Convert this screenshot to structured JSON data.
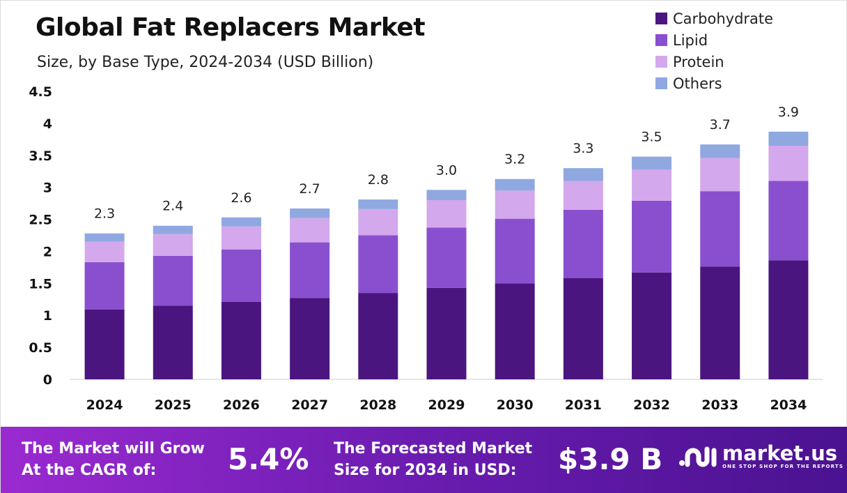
{
  "chart_data": {
    "type": "bar",
    "stacked": true,
    "title": "Global Fat Replacers Market",
    "subtitle": "Size, by Base Type, 2024-2034 (USD Billion)",
    "categories": [
      "2024",
      "2025",
      "2026",
      "2027",
      "2028",
      "2029",
      "2030",
      "2031",
      "2032",
      "2033",
      "2034"
    ],
    "series": [
      {
        "name": "Carbohydrate",
        "color": "#4b1580",
        "values": [
          1.09,
          1.15,
          1.21,
          1.27,
          1.35,
          1.43,
          1.5,
          1.58,
          1.67,
          1.76,
          1.86
        ]
      },
      {
        "name": "Lipid",
        "color": "#8a4fcf",
        "values": [
          0.74,
          0.78,
          0.82,
          0.87,
          0.9,
          0.94,
          1.01,
          1.07,
          1.12,
          1.18,
          1.24
        ]
      },
      {
        "name": "Protein",
        "color": "#d4a8ec",
        "values": [
          0.32,
          0.34,
          0.36,
          0.38,
          0.41,
          0.43,
          0.44,
          0.45,
          0.49,
          0.52,
          0.55
        ]
      },
      {
        "name": "Others",
        "color": "#8fa8e0",
        "values": [
          0.13,
          0.13,
          0.14,
          0.15,
          0.15,
          0.16,
          0.18,
          0.2,
          0.2,
          0.21,
          0.22
        ]
      }
    ],
    "totals_labels": [
      "2.3",
      "2.4",
      "2.6",
      "2.7",
      "2.8",
      "3.0",
      "3.2",
      "3.3",
      "3.5",
      "3.7",
      "3.9"
    ],
    "yticks": [
      "0",
      "0.5",
      "1",
      "1.5",
      "2",
      "2.5",
      "3",
      "3.5",
      "4",
      "4.5"
    ],
    "ylim": [
      0,
      4.5
    ],
    "grid": false,
    "legend_position": "top-right"
  },
  "footer": {
    "cagr_text_1": "The Market will Grow",
    "cagr_text_2": "At the CAGR of:",
    "cagr_value": "5.4%",
    "forecast_text_1": "The Forecasted Market",
    "forecast_text_2": "Size for 2034 in USD:",
    "forecast_value": "$3.9 B",
    "logo_name": "market.us",
    "logo_tagline": "ONE STOP SHOP FOR THE REPORTS"
  }
}
